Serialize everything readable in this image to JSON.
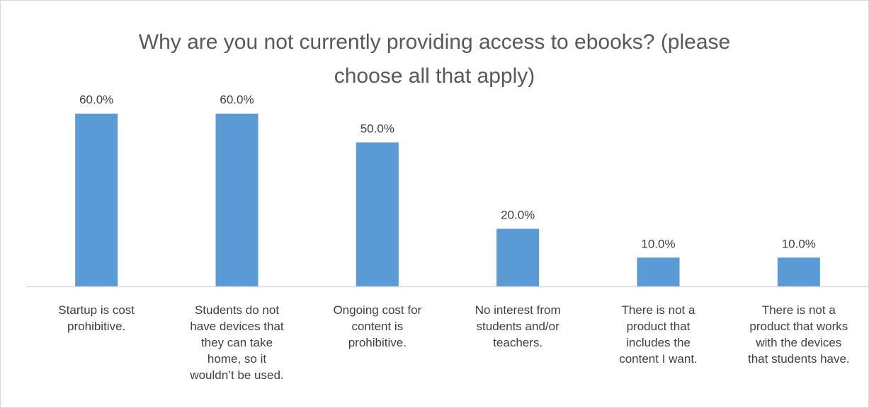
{
  "chart_data": {
    "type": "bar",
    "title_lines": [
      "Why are you not currently providing access to ebooks? (please",
      "choose all that apply)"
    ],
    "categories": [
      [
        "Startup is cost",
        "prohibitive."
      ],
      [
        "Students do not",
        "have devices that",
        "they can take",
        "home, so it",
        "wouldn’t be used."
      ],
      [
        "Ongoing cost for",
        "content is",
        "prohibitive."
      ],
      [
        "No interest from",
        "students and/or",
        "teachers."
      ],
      [
        "There is not a",
        "product that",
        "includes the",
        "content I want."
      ],
      [
        "There is not a",
        "product that works",
        "with the devices",
        "that students have."
      ]
    ],
    "values": [
      60.0,
      60.0,
      50.0,
      20.0,
      10.0,
      10.0
    ],
    "data_labels": [
      "60.0%",
      "60.0%",
      "50.0%",
      "20.0%",
      "10.0%",
      "10.0%"
    ],
    "ylim": [
      0,
      70
    ],
    "grid": false,
    "legend": "none",
    "bar_color": "#5b9bd5",
    "axis_color": "#d9d9d9",
    "label_color": "#404040"
  }
}
